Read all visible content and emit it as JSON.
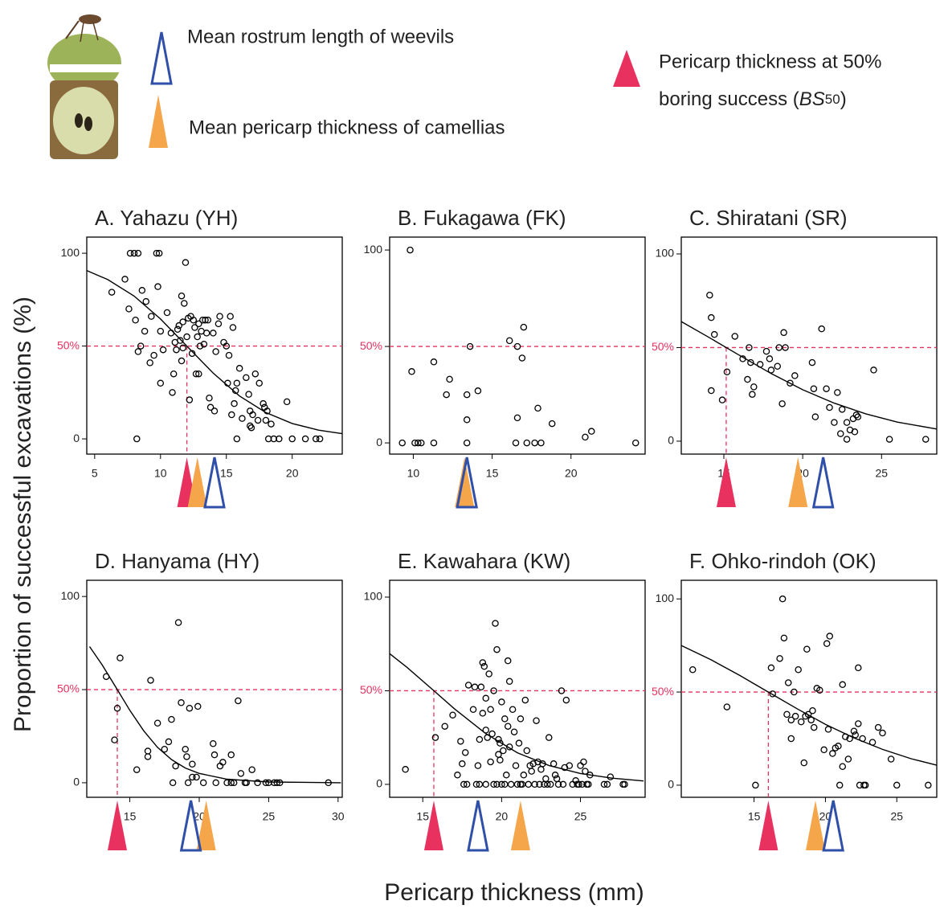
{
  "legend": {
    "rostrum": {
      "label": "Mean rostrum length of weevils",
      "color": "#2f4fa8",
      "outline": true
    },
    "pericarp": {
      "label": "Mean pericarp thickness of camellias",
      "color": "#f5a54a",
      "outline": false
    },
    "bs50": {
      "label": "Pericarp thickness at 50%",
      "label2": "boring success (",
      "symbol": "BS",
      "subscript": "50",
      "close": ")",
      "color": "#e8315f",
      "outline": false
    }
  },
  "ylabel": "Proportion of successful excavations (%)",
  "xlabel": "Pericarp thickness (mm)",
  "chart_data": [
    {
      "type": "scatter",
      "title": "A. Yahazu (YH)",
      "x": [
        6.3,
        7.3,
        7.6,
        7.7,
        8,
        8.3,
        8.1,
        8.3,
        8.5,
        8.6,
        8.8,
        8.9,
        9.2,
        9.3,
        9.5,
        9.7,
        9.9,
        9.8,
        10,
        10,
        10.2,
        10.5,
        10.8,
        10.9,
        11,
        11.1,
        11.2,
        11.4,
        11.6,
        11.7,
        11.8,
        11.9,
        12,
        12.1,
        12.3,
        12.5,
        12.6,
        12.7,
        12.8,
        12.9,
        13,
        13.1,
        13.2,
        13.3,
        13.5,
        13.6,
        13.7,
        13.8,
        14,
        14.1,
        14.2,
        14.4,
        14.5,
        12.2,
        11.7,
        11.5,
        11.3,
        12.4,
        12.9,
        13.4,
        14.8,
        15,
        15.2,
        15.3,
        15.5,
        15.1,
        15.4,
        15.6,
        15.7,
        15.8,
        15.8,
        16,
        16.2,
        16.5,
        16.7,
        16.8,
        16.9,
        17,
        17.2,
        17.4,
        17.5,
        17.8,
        17.9,
        18,
        18.1,
        18.2,
        18.4,
        18.6,
        19,
        19.6,
        20,
        21,
        21.8,
        22.1,
        8.2,
        11.6,
        16.8
      ],
      "values": [
        79,
        86,
        70,
        100,
        100,
        100,
        64,
        47,
        50,
        80,
        58,
        74,
        41,
        66,
        45,
        100,
        100,
        82,
        58,
        30,
        48,
        68,
        57,
        25,
        35,
        52,
        48,
        61,
        77,
        63,
        73,
        95,
        55,
        65,
        66,
        64,
        60,
        35,
        55,
        62,
        50,
        58,
        64,
        51,
        57,
        64,
        22,
        17,
        57,
        15,
        47,
        62,
        66,
        21,
        49,
        53,
        59,
        46,
        35,
        64,
        52,
        50,
        45,
        66,
        60,
        30,
        13,
        19,
        26,
        0,
        30,
        38,
        11,
        33,
        24,
        7,
        6,
        13,
        35,
        10,
        30,
        19,
        17,
        10,
        15,
        0,
        8,
        0,
        0,
        20,
        0,
        0,
        0,
        0,
        0,
        42,
        15
      ],
      "xlim": [
        4.4,
        23.8
      ],
      "ylim": [
        -8.2,
        108.7
      ],
      "xticks": [
        5,
        10,
        15,
        20
      ],
      "yticks": [
        0,
        {
          "value": 50,
          "label": "50%"
        },
        100
      ],
      "fit": {
        "x": [
          4.4,
          6,
          8,
          10,
          12,
          14,
          16,
          18,
          20,
          22,
          23.8
        ],
        "values": [
          90.7,
          85.8,
          76.9,
          64.6,
          50,
          35.4,
          23.1,
          14.2,
          8.3,
          4.7,
          2.8
        ]
      },
      "bs50": 12,
      "mean_pericarp": 12.8,
      "mean_rostrum": 14.1
    },
    {
      "type": "scatter",
      "title": "B. Fukagawa (FK)",
      "x": [
        9.3,
        9.8,
        9.9,
        10.1,
        10.3,
        10.5,
        11.3,
        11.3,
        12.1,
        12.3,
        13.4,
        13.4,
        13.4,
        13.6,
        14.1,
        16.1,
        16.5,
        16.6,
        16.6,
        16.9,
        17,
        17.2,
        17.7,
        17.9,
        18.1,
        18.8,
        20.9,
        21.3,
        24.1
      ],
      "values": [
        0,
        100,
        37,
        0,
        0,
        0,
        0,
        42,
        25,
        33,
        0,
        12,
        25,
        50,
        27,
        53,
        0,
        13,
        50,
        44,
        60,
        0,
        0,
        18,
        0,
        10,
        3,
        6,
        0
      ],
      "xlim": [
        8.5,
        24.7
      ],
      "ylim": [
        -5.8,
        106.7
      ],
      "xticks": [
        10,
        15,
        20
      ],
      "yticks": [
        0,
        {
          "value": 50,
          "label": "50%"
        },
        100
      ],
      "mean_pericarp": 13.25,
      "mean_rostrum": 13.4
    },
    {
      "type": "scatter",
      "title": "C. Shiratani (SR)",
      "x": [
        14.1,
        14.2,
        14.4,
        14.2,
        14.9,
        15.2,
        15.7,
        16.2,
        16.5,
        16.6,
        16.7,
        16.8,
        16.9,
        17.3,
        17.7,
        17.9,
        18,
        18.4,
        18.5,
        18.7,
        18.8,
        18.9,
        19.2,
        19.5,
        20.6,
        20.7,
        20.8,
        21.2,
        21.5,
        21.7,
        22,
        22.2,
        22.4,
        22.5,
        22.8,
        22.8,
        23,
        23.2,
        23.3,
        23.5,
        24.5,
        25.5,
        27.8,
        23.4
      ],
      "values": [
        78,
        66,
        57,
        27,
        22,
        37,
        56,
        44,
        33,
        50,
        42,
        25,
        29,
        41,
        48,
        44,
        38,
        40,
        50,
        20,
        58,
        50,
        31,
        35,
        42,
        28,
        13,
        60,
        28,
        18,
        10,
        26,
        4,
        17,
        10,
        1,
        6,
        12,
        5,
        13,
        38,
        1,
        1,
        14
      ],
      "xlim": [
        12.3,
        28.5
      ],
      "ylim": [
        -6.9,
        109
      ],
      "xticks": [
        15,
        20,
        25
      ],
      "yticks": [
        0,
        {
          "value": 50,
          "label": "50%"
        },
        100
      ],
      "fit": {
        "x": [
          12.3,
          14,
          16,
          18,
          20,
          22,
          24,
          26,
          28.5
        ],
        "values": [
          63.9,
          55.7,
          45.8,
          36.1,
          27.5,
          20.3,
          14.6,
          10.2,
          6.5
        ]
      },
      "bs50": 15.15,
      "mean_pericarp": 19.7,
      "mean_rostrum": 21.3
    },
    {
      "type": "scatter",
      "title": "D. Hanyama (HY)",
      "x": [
        13.3,
        13.9,
        14.1,
        14.3,
        15.5,
        16.3,
        16.3,
        16.5,
        17,
        17.5,
        17.8,
        18,
        18.1,
        18.3,
        18.5,
        18.7,
        19,
        19.1,
        19.2,
        19.3,
        19.5,
        19.5,
        19.8,
        19.9,
        20.3,
        21,
        21.1,
        21.2,
        21.5,
        21.7,
        22,
        22.3,
        22.3,
        22.5,
        22.8,
        23,
        23.3,
        23.4,
        23.8,
        24.2,
        24.8,
        25,
        25.4,
        25.6,
        25.8,
        29.3
      ],
      "values": [
        57,
        23,
        40,
        67,
        7,
        14,
        17,
        55,
        32,
        18,
        22,
        34,
        0,
        9,
        86,
        43,
        18,
        14,
        0,
        40,
        10,
        3,
        3,
        41,
        0,
        21,
        15,
        0,
        9,
        11,
        0,
        15,
        0,
        0,
        44,
        5,
        0,
        0,
        7,
        0,
        0,
        0,
        0,
        0,
        0,
        0
      ],
      "xlim": [
        11.9,
        30.3
      ],
      "ylim": [
        -7.8,
        108.7
      ],
      "xticks": [
        15,
        20,
        25,
        30
      ],
      "yticks": [
        0,
        {
          "value": 50,
          "label": "50%"
        },
        100
      ],
      "fit": {
        "x": [
          12.1,
          13,
          14.1,
          15,
          16,
          17,
          18,
          19,
          20,
          22,
          25,
          30.2
        ],
        "values": [
          73.1,
          63.4,
          50,
          38.9,
          27.9,
          19,
          12.5,
          7.9,
          5,
          1.9,
          0.4,
          0
        ]
      },
      "bs50": 14.1,
      "mean_pericarp": 20.5,
      "mean_rostrum": 19.4
    },
    {
      "type": "scatter",
      "title": "E. Kawahara (KW)",
      "x": [
        13.9,
        15.8,
        16.4,
        16.9,
        17.2,
        17.4,
        17.5,
        17.7,
        17.8,
        17.9,
        18.2,
        18.3,
        18.4,
        18.5,
        18.6,
        18.7,
        18.8,
        18.8,
        18.9,
        19,
        19,
        19,
        19.1,
        19.2,
        19.3,
        19.4,
        19.5,
        19.6,
        19.7,
        19.7,
        19.8,
        19.9,
        19.9,
        20,
        20,
        20.1,
        20.2,
        20.3,
        20.4,
        20.4,
        20.5,
        20.6,
        20.7,
        20.8,
        20.9,
        21,
        21.1,
        21.2,
        21.3,
        21.4,
        21.5,
        21.6,
        21.7,
        21.8,
        21.9,
        22,
        22.1,
        22.2,
        22.3,
        22.4,
        22.5,
        22.6,
        22.7,
        22.8,
        23,
        23.1,
        23.3,
        23.4,
        23.5,
        23.6,
        23.8,
        23.9,
        24,
        24.1,
        24.3,
        24.5,
        24.7,
        24.9,
        25,
        25.1,
        25.2,
        25.3,
        25.4,
        25.5,
        25.6,
        26.5,
        26.7,
        26.9,
        27.7,
        27.8,
        19.3,
        20.2,
        19.5,
        18.6,
        20.5,
        19.8,
        21.2,
        22.9,
        24.8,
        17.6
      ],
      "values": [
        8,
        25,
        31,
        37,
        5,
        23,
        11,
        17,
        0,
        53,
        40,
        52,
        0,
        10,
        24,
        52,
        38,
        65,
        63,
        0,
        29,
        46,
        25,
        59,
        40,
        27,
        50,
        86,
        0,
        72,
        24,
        22,
        13,
        0,
        44,
        18,
        35,
        5,
        31,
        66,
        55,
        0,
        40,
        28,
        10,
        0,
        22,
        35,
        0,
        5,
        45,
        18,
        0,
        10,
        7,
        11,
        0,
        34,
        12,
        0,
        8,
        11,
        0,
        3,
        25,
        0,
        11,
        5,
        3,
        0,
        50,
        0,
        9,
        45,
        10,
        0,
        2,
        0,
        10,
        0,
        12,
        7,
        0,
        0,
        5,
        0,
        0,
        4,
        0,
        0,
        12,
        0,
        0,
        0,
        20,
        16,
        0,
        0,
        0,
        0
      ],
      "xlim": [
        12.9,
        29.1
      ],
      "ylim": [
        -6.9,
        109
      ],
      "xticks": [
        15,
        20,
        25
      ],
      "yticks": [
        0,
        {
          "value": 50,
          "label": "50%"
        },
        100
      ],
      "fit": {
        "x": [
          12.9,
          14,
          15.7,
          17,
          19,
          21,
          23,
          25,
          27,
          29
        ],
        "values": [
          69.8,
          62.5,
          50,
          40.4,
          27.1,
          16.9,
          10.1,
          5.8,
          3.3,
          1.8
        ]
      },
      "bs50": 15.7,
      "mean_pericarp": 21.2,
      "mean_rostrum": 18.5
    },
    {
      "type": "scatter",
      "title": "F. Ohko-rindoh (OK)",
      "x": [
        10.7,
        13.1,
        15.1,
        16.2,
        16.3,
        16.8,
        17,
        17.1,
        17.3,
        17.4,
        17.6,
        17.6,
        17.8,
        17.9,
        18.1,
        18.3,
        18.5,
        18.6,
        18.7,
        18.8,
        19,
        19.1,
        19.2,
        19.4,
        19.6,
        19.9,
        20.1,
        20.2,
        20.3,
        20.5,
        20.7,
        20.9,
        21.2,
        21,
        21.2,
        21.4,
        21.6,
        21.7,
        22,
        22.1,
        22.3,
        22.3,
        22.4,
        22.7,
        22.6,
        23.3,
        23.7,
        24,
        24.6,
        25,
        27.2,
        22.8
      ],
      "values": [
        62,
        42,
        0,
        63,
        49,
        68,
        100,
        79,
        38,
        55,
        35,
        25,
        50,
        37,
        62,
        34,
        12,
        37,
        73,
        38,
        35,
        40,
        31,
        52,
        51,
        19,
        76,
        30,
        80,
        17,
        20,
        21,
        54,
        0,
        10,
        26,
        14,
        25,
        29,
        27,
        33,
        63,
        0,
        0,
        25,
        23,
        31,
        28,
        14,
        0,
        0,
        0
      ],
      "xlim": [
        9.9,
        27.8
      ],
      "ylim": [
        -6.5,
        110
      ],
      "xticks": [
        15,
        20,
        25
      ],
      "yticks": [
        0,
        {
          "value": 50,
          "label": "50%"
        },
        100
      ],
      "fit": {
        "x": [
          9.9,
          12,
          14,
          16,
          18,
          20,
          22,
          24,
          26,
          27.8
        ],
        "values": [
          75,
          67.3,
          58.9,
          50,
          41.1,
          32.7,
          25.4,
          19.2,
          14.2,
          10.7
        ]
      },
      "bs50": 16,
      "mean_pericarp": 19.3,
      "mean_rostrum": 20.55
    }
  ]
}
